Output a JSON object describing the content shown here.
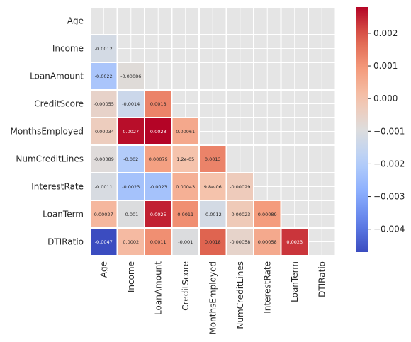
{
  "chart_data": {
    "type": "heatmap",
    "title": "",
    "xlabel": "",
    "ylabel": "",
    "variables": [
      "Age",
      "Income",
      "LoanAmount",
      "CreditScore",
      "MonthsEmployed",
      "NumCreditLines",
      "InterestRate",
      "LoanTerm",
      "DTIRatio"
    ],
    "mask": "upper-triangle-including-diagonal",
    "lower_triangle_values": [
      [],
      [
        -0.0012
      ],
      [
        -0.0022,
        -0.00086
      ],
      [
        -0.00055,
        -0.0014,
        0.0013
      ],
      [
        -0.00034,
        0.0027,
        0.0028,
        0.00061
      ],
      [
        -0.00089,
        -0.002,
        0.00079,
        1.2e-05
      ],
      [
        -0.0011,
        -0.0023,
        -0.0023,
        0.00043,
        9.8e-06,
        -0.00029
      ],
      [
        0.00027,
        -0.001,
        0.0025,
        0.0011,
        -0.0012,
        -0.00023,
        0.00089
      ],
      [
        -0.0047,
        0.0002,
        0.0011,
        -0.001,
        0.0018,
        -0.00058,
        0.00058,
        0.0023
      ]
    ],
    "annotations": [
      [],
      [
        "-0.0012"
      ],
      [
        "-0.0022",
        "-0.00086"
      ],
      [
        "-0.00055",
        "-0.0014",
        "0.0013"
      ],
      [
        "-0.00034",
        "0.0027",
        "0.0028",
        "0.00061"
      ],
      [
        "-0.00089",
        "-0.002",
        "0.00079",
        "1.2e-05",
        "0.0013"
      ],
      [
        "-0.0011",
        "-0.0023",
        "-0.0023",
        "0.00043",
        "9.8e-06",
        "-0.00029"
      ],
      [
        "0.00027",
        "-0.001",
        "0.0025",
        "0.0011",
        "-0.0012",
        "-0.00023",
        "0.00089"
      ],
      [
        "-0.0047",
        "0.0002",
        "0.0011",
        "-0.001",
        "0.0018",
        "-0.00058",
        "0.00058",
        "0.0023"
      ]
    ],
    "extra_values": {
      "NumCreditLines_MonthsEmployed": 0.0013
    },
    "colormap": "coolwarm",
    "vmin": -0.0047,
    "vmax": 0.0028,
    "colorbar_ticks": [
      0.002,
      0.001,
      0.0,
      -0.001,
      -0.002,
      -0.003,
      -0.004
    ],
    "colorbar_tick_labels": [
      "0.002",
      "0.001",
      "0.000",
      "−0.001",
      "−0.002",
      "−0.003",
      "−0.004"
    ],
    "masked_cell_color": "#e5e5e5",
    "grid_line_color": "#ffffff"
  }
}
